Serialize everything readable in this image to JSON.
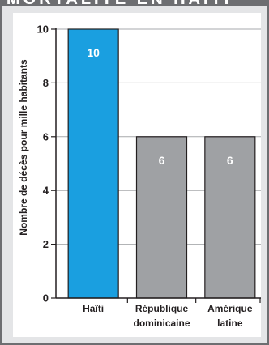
{
  "header": {
    "title": "MORTALITÉ EN HAÏTI"
  },
  "chart_data": {
    "type": "bar",
    "title": "",
    "xlabel": "",
    "ylabel": "Nombre de décès pour mille habitants",
    "ylim": [
      0,
      10
    ],
    "yticks": [
      0,
      2,
      4,
      6,
      8,
      10
    ],
    "ytick_labels": [
      "0",
      "2",
      "4",
      "6",
      "8",
      "10"
    ],
    "categories": [
      "Haïti",
      "République dominicaine",
      "Amérique latine"
    ],
    "category_lines": [
      [
        "Haïti"
      ],
      [
        "République",
        "dominicaine"
      ],
      [
        "Amérique",
        "latine"
      ]
    ],
    "values": [
      10,
      6,
      6
    ],
    "data_labels": [
      "10",
      "6",
      "6"
    ],
    "colors": [
      "#1a9fe0",
      "#9fa1a4",
      "#9fa1a4"
    ],
    "grid": true
  }
}
